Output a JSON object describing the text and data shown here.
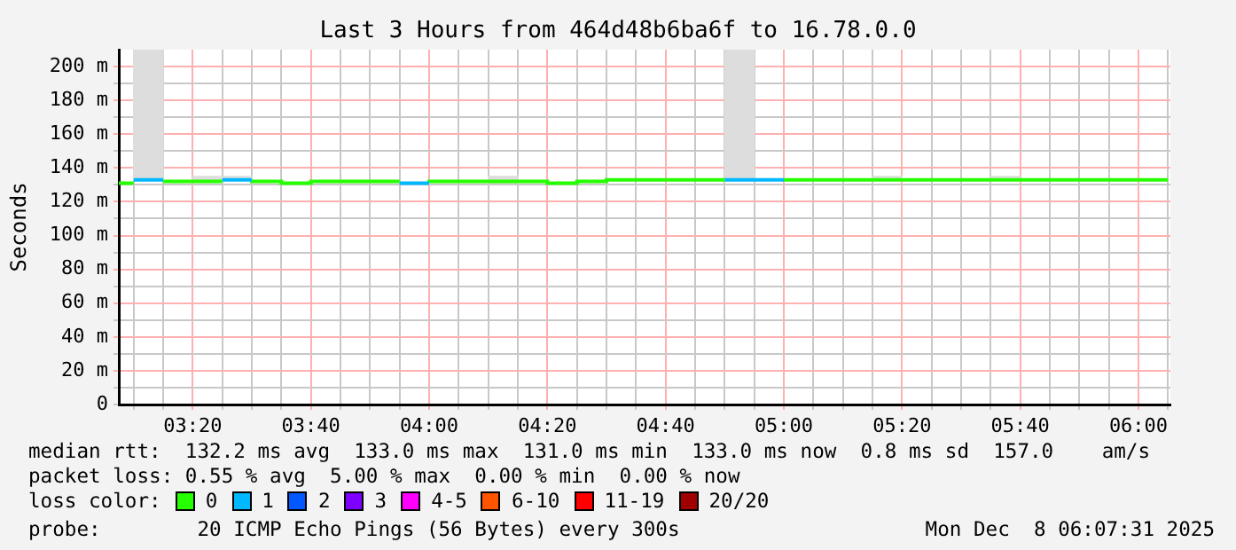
{
  "chart_data": {
    "type": "step",
    "title": "Last 3 Hours from 464d48b6ba6f to 16.78.0.0",
    "ylabel": "Seconds",
    "legend_title": "loss color:",
    "legend": "bottom",
    "grid": true,
    "xlim": [
      3.125,
      6.09
    ],
    "ylim": [
      0,
      210
    ],
    "xticks": [
      {
        "value": 3.1667,
        "label": null
      },
      {
        "value": 3.25,
        "label": null
      },
      {
        "value": 3.3333,
        "label": "03:20"
      },
      {
        "value": 3.4167,
        "label": null
      },
      {
        "value": 3.5,
        "label": null
      },
      {
        "value": 3.5833,
        "label": null
      },
      {
        "value": 3.6667,
        "label": "03:40"
      },
      {
        "value": 3.75,
        "label": null
      },
      {
        "value": 3.8333,
        "label": null
      },
      {
        "value": 3.9167,
        "label": null
      },
      {
        "value": 4,
        "label": "04:00"
      },
      {
        "value": 4.0833,
        "label": null
      },
      {
        "value": 4.1667,
        "label": null
      },
      {
        "value": 4.25,
        "label": null
      },
      {
        "value": 4.3333,
        "label": "04:20"
      },
      {
        "value": 4.4167,
        "label": null
      },
      {
        "value": 4.5,
        "label": null
      },
      {
        "value": 4.5833,
        "label": null
      },
      {
        "value": 4.6667,
        "label": "04:40"
      },
      {
        "value": 4.75,
        "label": null
      },
      {
        "value": 4.8333,
        "label": null
      },
      {
        "value": 4.9167,
        "label": null
      },
      {
        "value": 5,
        "label": "05:00"
      },
      {
        "value": 5.0833,
        "label": null
      },
      {
        "value": 5.1667,
        "label": null
      },
      {
        "value": 5.25,
        "label": null
      },
      {
        "value": 5.3333,
        "label": "05:20"
      },
      {
        "value": 5.4167,
        "label": null
      },
      {
        "value": 5.5,
        "label": null
      },
      {
        "value": 5.5833,
        "label": null
      },
      {
        "value": 5.6667,
        "label": "05:40"
      },
      {
        "value": 5.75,
        "label": null
      },
      {
        "value": 5.8333,
        "label": null
      },
      {
        "value": 5.9167,
        "label": null
      },
      {
        "value": 6,
        "label": "06:00"
      },
      {
        "value": 6.0833,
        "label": null
      }
    ],
    "yticks": [
      0,
      {
        "value": 10,
        "label": null
      },
      {
        "value": 20,
        "label": "20 m"
      },
      {
        "value": 30,
        "label": null
      },
      {
        "value": 40,
        "label": "40 m"
      },
      {
        "value": 50,
        "label": null
      },
      {
        "value": 60,
        "label": "60 m"
      },
      {
        "value": 70,
        "label": null
      },
      {
        "value": 80,
        "label": "80 m"
      },
      {
        "value": 90,
        "label": null
      },
      {
        "value": 100,
        "label": "100 m"
      },
      {
        "value": 110,
        "label": null
      },
      {
        "value": 120,
        "label": "120 m"
      },
      {
        "value": 130,
        "label": null
      },
      {
        "value": 140,
        "label": "140 m"
      },
      {
        "value": 150,
        "label": null
      },
      {
        "value": 160,
        "label": "160 m"
      },
      {
        "value": 170,
        "label": null
      },
      {
        "value": 180,
        "label": "180 m"
      },
      {
        "value": 190,
        "label": null
      },
      {
        "value": 200,
        "label": "200 m"
      }
    ],
    "series": [
      {
        "type": "bar",
        "color": "#dddddd",
        "x": [
          3.2083,
          3.375,
          3.4583,
          4.2083,
          4.875,
          5.2917,
          5.625
        ],
        "base": [
          133,
          132,
          133,
          131,
          133,
          133,
          133
        ],
        "values": [
          77,
          3,
          2,
          4,
          77,
          2,
          2
        ]
      },
      {
        "name": "0",
        "color": "#26ff00",
        "x": [
          3.125,
          3.1667
        ],
        "values": [
          131,
          131
        ]
      },
      {
        "name": "1",
        "color": "#00b8ff",
        "x": [
          3.1667,
          3.25
        ],
        "values": [
          133,
          133
        ]
      },
      {
        "color": "#26ff00",
        "x": [
          3.25,
          3.4167
        ],
        "values": [
          132,
          132
        ]
      },
      {
        "color": "#00b8ff",
        "x": [
          3.4167,
          3.5
        ],
        "values": [
          133,
          133
        ]
      },
      {
        "color": "#26ff00",
        "x": [
          3.5,
          3.5833,
          3.6667,
          3.8333,
          3.9167
        ],
        "values": [
          131,
          132,
          131,
          132,
          132
        ]
      },
      {
        "color": "#00b8ff",
        "x": [
          3.9167,
          4
        ],
        "values": [
          131,
          131
        ]
      },
      {
        "color": "#26ff00",
        "x": [
          4,
          4.3333,
          4.4167,
          4.5,
          4.6667,
          4.8333
        ],
        "values": [
          131,
          132,
          131,
          132,
          133,
          133
        ]
      },
      {
        "color": "#00b8ff",
        "x": [
          4.8333,
          5
        ],
        "values": [
          133,
          133
        ]
      },
      {
        "color": "#26ff00",
        "x": [
          5,
          6.0833
        ],
        "values": [
          133,
          133
        ]
      },
      {
        "name": "2",
        "color": "#0059ff"
      },
      {
        "name": "3",
        "color": "#7e00ff"
      },
      {
        "name": "4-5",
        "color": "#ff00fe"
      },
      {
        "name": "6-10",
        "color": "#ff5500"
      },
      {
        "name": "11-19",
        "color": "#ff0000"
      },
      {
        "name": "20/20",
        "color": "#a10000"
      }
    ],
    "annotations": [
      "median rtt:  132.2 ms avg  133.0 ms max  131.0 ms min  133.0 ms now  0.8 ms sd  157.0    am/s",
      "packet loss: 0.55 % avg  5.00 % max  0.00 % min  0.00 % now",
      "probe:        20 ICMP Echo Pings (56 Bytes) every 300s",
      "Mon Dec  8 06:07:31 2025"
    ]
  }
}
